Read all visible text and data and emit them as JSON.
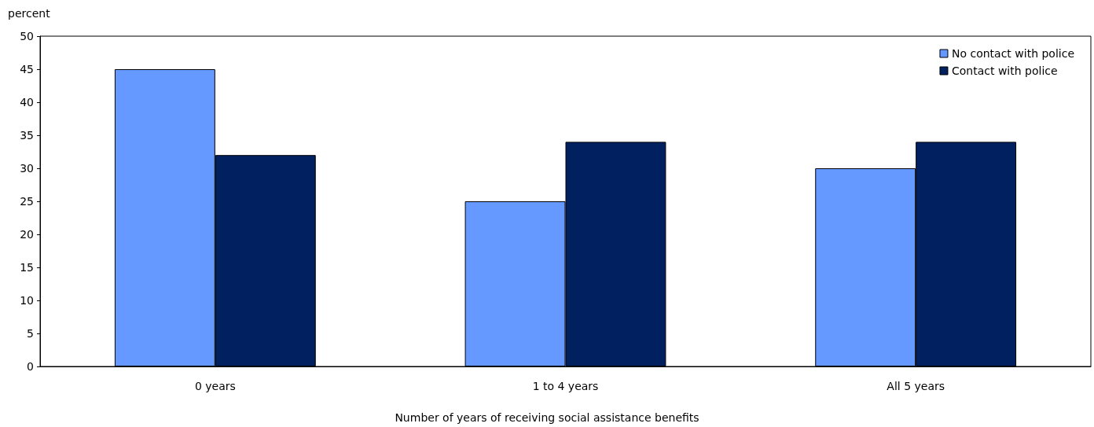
{
  "chart_data": {
    "type": "bar",
    "ylabel": "percent",
    "xlabel": "Number of years of receiving social assistance benefits",
    "categories": [
      "0 years",
      "1 to 4 years",
      "All 5 years"
    ],
    "series": [
      {
        "name": "No contact with police",
        "color": "#6699ff",
        "values": [
          45,
          25,
          30
        ]
      },
      {
        "name": "Contact with police",
        "color": "#002060",
        "values": [
          32,
          34,
          34
        ]
      }
    ],
    "ylim": [
      0,
      50
    ],
    "yticks": [
      0,
      5,
      10,
      15,
      20,
      25,
      30,
      35,
      40,
      45,
      50
    ],
    "legend": "top right"
  }
}
